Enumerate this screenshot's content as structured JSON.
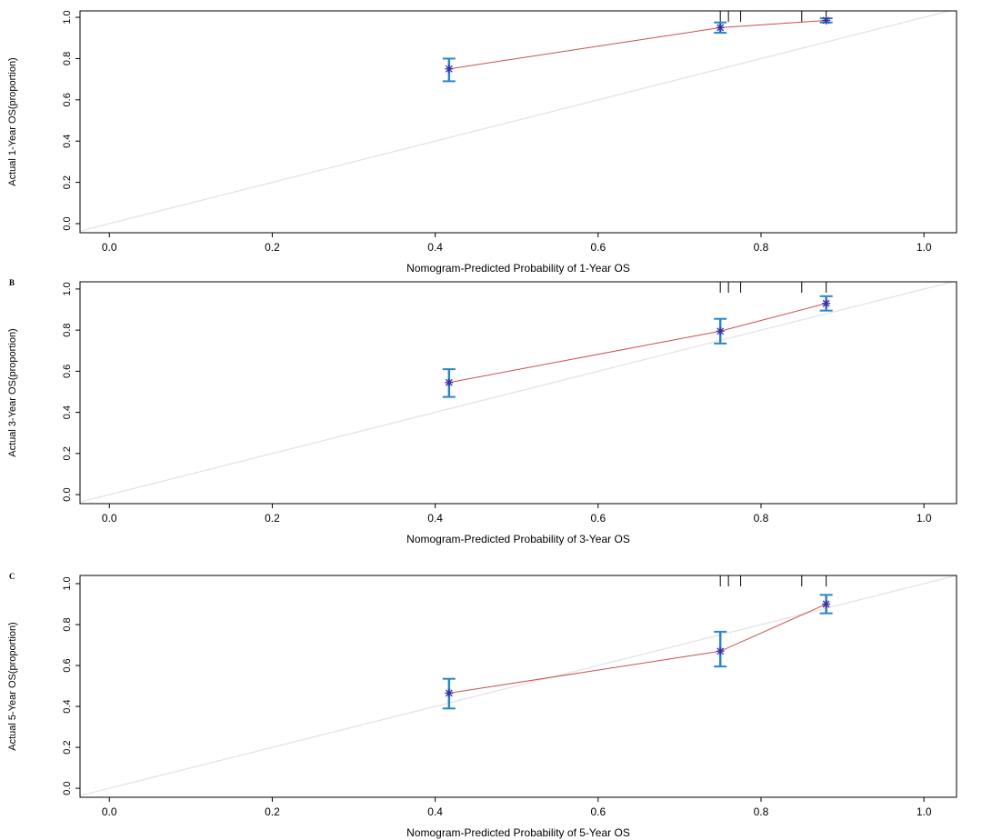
{
  "chart_data": [
    {
      "type": "calibration",
      "xlabel": "Nomogram-Predicted Probability of 1-Year OS",
      "ylabel": "Actual 1-Year OS(proportion)",
      "x": [
        0.417,
        0.75,
        0.88
      ],
      "series": [
        {
          "line_color": "#c8504a",
          "bar_color": "#2a86c8",
          "marker_color": "#3b2fa8",
          "values": [
            0.75,
            0.95,
            0.985
          ],
          "lower": [
            0.69,
            0.925,
            0.975
          ],
          "upper": [
            0.8,
            0.975,
            0.995
          ]
        }
      ],
      "rug": [
        0.75,
        0.76,
        0.775,
        0.85,
        0.88
      ],
      "xlim": [
        -0.036,
        1.04
      ],
      "ylim": [
        -0.044,
        1.031
      ],
      "diagonal": true,
      "xticks": [
        {
          "value": 0,
          "label": "0.0"
        },
        0.2,
        0.4,
        0.6,
        0.8,
        {
          "value": 1,
          "label": "1.0"
        }
      ],
      "yticks": [
        {
          "value": 0,
          "label": "0.0"
        },
        0.2,
        0.4,
        0.6,
        0.8,
        {
          "value": 1,
          "label": "1.0"
        }
      ]
    },
    {
      "type": "calibration",
      "label": "B",
      "xlabel": "Nomogram-Predicted Probability of 3-Year OS",
      "ylabel": "Actual 3-Year OS(proportion)",
      "x": [
        0.417,
        0.75,
        0.88
      ],
      "series": [
        {
          "line_color": "#c8504a",
          "bar_color": "#2a86c8",
          "marker_color": "#3b2fa8",
          "values": [
            0.545,
            0.795,
            0.93
          ],
          "lower": [
            0.475,
            0.735,
            0.895
          ],
          "upper": [
            0.61,
            0.855,
            0.965
          ]
        }
      ],
      "rug": [
        0.75,
        0.76,
        0.775,
        0.85,
        0.88
      ],
      "xlim": [
        -0.036,
        1.04
      ],
      "ylim": [
        -0.044,
        1.035
      ],
      "diagonal": true,
      "xticks": [
        {
          "value": 0,
          "label": "0.0"
        },
        0.2,
        0.4,
        0.6,
        0.8,
        {
          "value": 1,
          "label": "1.0"
        }
      ],
      "yticks": [
        {
          "value": 0,
          "label": "0.0"
        },
        0.2,
        0.4,
        0.6,
        0.8,
        {
          "value": 1,
          "label": "1.0"
        }
      ]
    },
    {
      "type": "calibration",
      "label": "C",
      "xlabel": "Nomogram-Predicted Probability of 5-Year OS",
      "ylabel": "Actual 5-Year OS(proportion)",
      "x": [
        0.417,
        0.75,
        0.88
      ],
      "series": [
        {
          "line_color": "#c8504a",
          "bar_color": "#2a86c8",
          "marker_color": "#3b2fa8",
          "values": [
            0.465,
            0.67,
            0.9
          ],
          "lower": [
            0.39,
            0.595,
            0.855
          ],
          "upper": [
            0.535,
            0.765,
            0.945
          ]
        }
      ],
      "rug": [
        0.75,
        0.76,
        0.775,
        0.85,
        0.88
      ],
      "xlim": [
        -0.036,
        1.04
      ],
      "ylim": [
        -0.044,
        1.04
      ],
      "diagonal": true,
      "xticks": [
        {
          "value": 0,
          "label": "0.0"
        },
        0.2,
        0.4,
        0.6,
        0.8,
        {
          "value": 1,
          "label": "1.0"
        }
      ],
      "yticks": [
        {
          "value": 0,
          "label": "0.0"
        },
        0.2,
        0.4,
        0.6,
        0.8,
        {
          "value": 1,
          "label": "1.0"
        }
      ]
    }
  ]
}
